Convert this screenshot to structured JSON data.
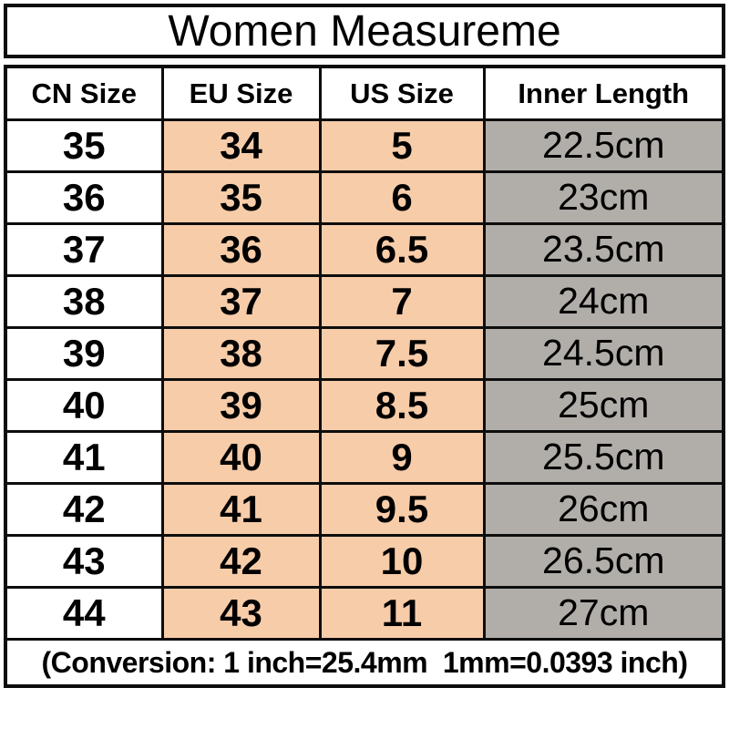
{
  "title": "Women Measureme",
  "table": {
    "headers": [
      "CN Size",
      "EU Size",
      "US Size",
      "Inner Length"
    ],
    "rows": [
      {
        "cn": "35",
        "eu": "34",
        "us": "5",
        "inner": "22.5cm"
      },
      {
        "cn": "36",
        "eu": "35",
        "us": "6",
        "inner": "23cm"
      },
      {
        "cn": "37",
        "eu": "36",
        "us": "6.5",
        "inner": "23.5cm"
      },
      {
        "cn": "38",
        "eu": "37",
        "us": "7",
        "inner": "24cm"
      },
      {
        "cn": "39",
        "eu": "38",
        "us": "7.5",
        "inner": "24.5cm"
      },
      {
        "cn": "40",
        "eu": "39",
        "us": "8.5",
        "inner": "25cm"
      },
      {
        "cn": "41",
        "eu": "40",
        "us": "9",
        "inner": "25.5cm"
      },
      {
        "cn": "42",
        "eu": "41",
        "us": "9.5",
        "inner": "26cm"
      },
      {
        "cn": "43",
        "eu": "42",
        "us": "10",
        "inner": "26.5cm"
      },
      {
        "cn": "44",
        "eu": "43",
        "us": "11",
        "inner": "27cm"
      }
    ],
    "footer": "(Conversion: 1 inch=25.4mm  1mm=0.0393 inch)"
  },
  "colors": {
    "border": "#0d0d0d",
    "peach": "#F7CCA9",
    "gray": "#B1AEA9",
    "bg": "#ffffff",
    "text": "#000000"
  },
  "chart_data": {
    "type": "table",
    "title": "Women Measureme",
    "columns": [
      "CN Size",
      "EU Size",
      "US Size",
      "Inner Length"
    ],
    "rows": [
      [
        "35",
        "34",
        "5",
        "22.5cm"
      ],
      [
        "36",
        "35",
        "6",
        "23cm"
      ],
      [
        "37",
        "36",
        "6.5",
        "23.5cm"
      ],
      [
        "38",
        "37",
        "7",
        "24cm"
      ],
      [
        "39",
        "38",
        "7.5",
        "24.5cm"
      ],
      [
        "40",
        "39",
        "8.5",
        "25cm"
      ],
      [
        "41",
        "40",
        "9",
        "25.5cm"
      ],
      [
        "42",
        "41",
        "9.5",
        "26cm"
      ],
      [
        "43",
        "42",
        "10",
        "26.5cm"
      ],
      [
        "44",
        "43",
        "11",
        "27cm"
      ]
    ],
    "footnote": "(Conversion: 1 inch=25.4mm  1mm=0.0393 inch)",
    "layout_hints": {
      "column_backgrounds": [
        "white",
        "peach",
        "peach",
        "gray"
      ],
      "grid": true,
      "all_cells_centered": true
    }
  }
}
